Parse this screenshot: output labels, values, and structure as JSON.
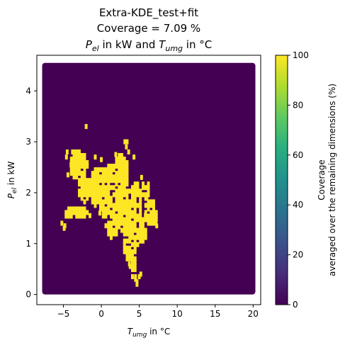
{
  "chart_data": {
    "type": "heatmap",
    "title_lines": [
      "Extra-KDE_test+fit",
      "Coverage = 7.09 %"
    ],
    "title_line3": {
      "p": "P",
      "p_sub": "el",
      "mid": " in kW and ",
      "t": "T",
      "t_sub": "umg",
      "end": " in °C"
    },
    "xlabel": {
      "t": "T",
      "t_sub": "umg",
      "end": " in °C"
    },
    "ylabel": {
      "p": "P",
      "p_sub": "el",
      "end": " in kW"
    },
    "xlim": [
      -8.5,
      21.0
    ],
    "ylim": [
      -0.2,
      4.7
    ],
    "x_ticks": [
      -5,
      0,
      5,
      10,
      15,
      20
    ],
    "y_ticks": [
      0,
      1,
      2,
      3,
      4
    ],
    "grid_extent": {
      "x": [
        -7.8,
        20.3
      ],
      "y": [
        0.0,
        4.55
      ]
    },
    "colorbar": {
      "label_lines": [
        "Coverage",
        "averaged over the remaining dimensions (%)"
      ],
      "range": [
        0,
        100
      ],
      "ticks": [
        0,
        20,
        40,
        60,
        80,
        100
      ],
      "colormap": "viridis"
    },
    "covered_value": 100,
    "uncovered_value": 0,
    "covered_regions": [
      {
        "x": -0.2,
        "y": 2.1,
        "rx": 1.5,
        "ry": 0.4
      },
      {
        "x": 1.2,
        "y": 2.0,
        "rx": 1.8,
        "ry": 0.55
      },
      {
        "x": 2.0,
        "y": 1.8,
        "rx": 1.5,
        "ry": 0.5
      },
      {
        "x": 3.2,
        "y": 1.65,
        "rx": 1.6,
        "ry": 0.45
      },
      {
        "x": 4.0,
        "y": 1.45,
        "rx": 1.6,
        "ry": 0.4
      },
      {
        "x": 2.6,
        "y": 2.35,
        "rx": 1.0,
        "ry": 0.4
      },
      {
        "x": 1.5,
        "y": 1.4,
        "rx": 0.8,
        "ry": 0.35
      },
      {
        "x": 4.8,
        "y": 1.25,
        "rx": 1.2,
        "ry": 0.3
      },
      {
        "x": 4.5,
        "y": 1.9,
        "rx": 0.9,
        "ry": 0.3
      },
      {
        "x": 3.8,
        "y": 0.95,
        "rx": 0.9,
        "ry": 0.28
      },
      {
        "x": 4.2,
        "y": 0.65,
        "rx": 0.5,
        "ry": 0.2
      },
      {
        "x": -3.3,
        "y": 1.6,
        "rx": 1.6,
        "ry": 0.12
      },
      {
        "x": -3.0,
        "y": 2.55,
        "rx": 1.2,
        "ry": 0.3
      },
      {
        "x": -2.2,
        "y": 2.1,
        "rx": 0.8,
        "ry": 0.3
      },
      {
        "x": 6.5,
        "y": 1.6,
        "rx": 0.9,
        "ry": 0.25
      },
      {
        "x": 5.8,
        "y": 2.05,
        "rx": 0.6,
        "ry": 0.2
      }
    ],
    "covered_points": [
      [
        -2.0,
        3.3
      ],
      [
        3.1,
        3.0
      ],
      [
        3.4,
        3.0
      ],
      [
        3.3,
        2.9
      ],
      [
        -4.5,
        2.8
      ],
      [
        -3.8,
        2.8
      ],
      [
        -3.5,
        2.75
      ],
      [
        -4.6,
        2.7
      ],
      [
        -4.0,
        2.55
      ],
      [
        -4.4,
        2.35
      ],
      [
        -5.2,
        1.4
      ],
      [
        -4.8,
        1.35
      ],
      [
        -4.9,
        1.3
      ],
      [
        5.8,
        1.55
      ],
      [
        6.8,
        1.45
      ],
      [
        7.2,
        1.4
      ],
      [
        7.3,
        1.35
      ],
      [
        3.7,
        0.6
      ],
      [
        3.8,
        0.55
      ],
      [
        4.2,
        0.5
      ],
      [
        4.1,
        0.35
      ],
      [
        4.5,
        0.35
      ],
      [
        5.2,
        0.4
      ],
      [
        5.0,
        0.35
      ],
      [
        4.7,
        0.25
      ],
      [
        4.5,
        0.3
      ],
      [
        4.7,
        0.2
      ],
      [
        3.6,
        2.8
      ],
      [
        4.3,
        2.7
      ],
      [
        5.3,
        2.3
      ],
      [
        5.5,
        2.15
      ],
      [
        6.0,
        1.9
      ],
      [
        -1.5,
        1.55
      ],
      [
        -0.2,
        1.6
      ],
      [
        0.6,
        1.35
      ],
      [
        -0.8,
        2.7
      ],
      [
        0.0,
        2.65
      ],
      [
        1.9,
        2.75
      ],
      [
        2.4,
        2.65
      ]
    ]
  }
}
